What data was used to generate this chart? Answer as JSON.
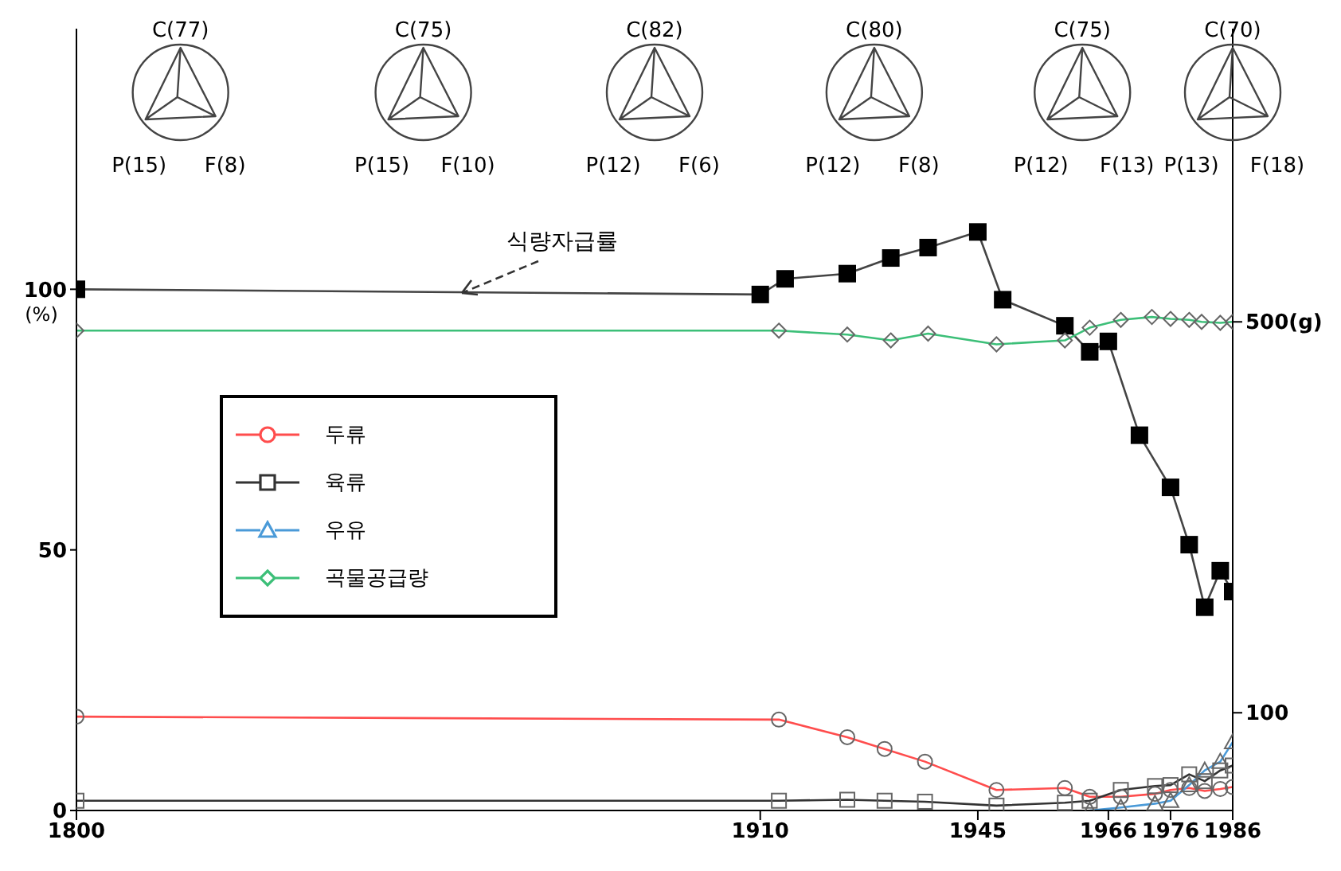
{
  "chart_data": {
    "type": "line",
    "ylabel": "(%)",
    "xlim": [
      1800,
      1986
    ],
    "xticks": [
      1800,
      1910,
      1945,
      1966,
      1976,
      1986
    ],
    "ylim": [
      0,
      150
    ],
    "yticks": [
      0,
      50,
      100
    ],
    "y2lim": [
      0,
      800
    ],
    "y2ticks": [
      100,
      {
        "value": 500,
        "label": "500(g)"
      }
    ],
    "grid": false,
    "legend": "left",
    "annotations": [
      "C(77)",
      "P(15)",
      "F(8)",
      "C(75)",
      "P(15)",
      "F(10)",
      "C(82)",
      "P(12)",
      "F(6)",
      "C(80)",
      "P(12)",
      "F(8)",
      "C(75)",
      "P(12)",
      "F(13)",
      "C(70)",
      "P(13)",
      "F(18)"
    ],
    "series": [
      {
        "name": "식량자급률",
        "color": "#444444",
        "axis": "y",
        "marker": "square",
        "x": [
          1800,
          1910,
          1914,
          1924,
          1931,
          1937,
          1945,
          1949,
          1959,
          1963,
          1966,
          1971,
          1976,
          1979,
          1981.5,
          1984,
          1986
        ],
        "values": [
          100,
          99,
          102,
          103,
          106,
          108,
          111,
          98,
          93,
          88,
          90,
          72,
          62,
          51,
          39,
          46,
          42
        ]
      },
      {
        "name": "두류",
        "color": "#ff4d4d",
        "axis": "y2",
        "marker": "circle",
        "x": [
          1800,
          1913,
          1924,
          1930,
          1936.5,
          1948,
          1959,
          1963,
          1968,
          1973.5,
          1976,
          1979,
          1981.5,
          1984,
          1986
        ],
        "values": [
          96,
          93,
          75,
          63,
          50,
          21,
          23,
          14,
          14,
          17,
          21,
          23,
          20,
          22,
          24
        ]
      },
      {
        "name": "육류",
        "color": "#333333",
        "axis": "y2",
        "marker": "square",
        "x": [
          1800,
          1913,
          1924,
          1930,
          1936.5,
          1948,
          1959,
          1963,
          1968,
          1973.5,
          1976,
          1979,
          1981.5,
          1984,
          1986
        ],
        "values": [
          10,
          10,
          11,
          10,
          9,
          5,
          8,
          10,
          21,
          25,
          26,
          37,
          30,
          41,
          46
        ]
      },
      {
        "name": "우유",
        "color": "#4a9ad8",
        "axis": "y2",
        "marker": "triangle",
        "x": [
          1963,
          1968,
          1973.5,
          1976,
          1979,
          1981.5,
          1984,
          1986
        ],
        "values": [
          0,
          3,
          7,
          10,
          26,
          41,
          50,
          70
        ]
      },
      {
        "name": "곡물공급량",
        "color": "#3cbf78",
        "axis": "y2",
        "marker": "diamond",
        "x": [
          1800,
          1913,
          1924,
          1931,
          1937,
          1948,
          1959,
          1963,
          1968,
          1973,
          1976,
          1979,
          1981,
          1984,
          1986
        ],
        "values": [
          491,
          491,
          487,
          481,
          488,
          477,
          481,
          494,
          502,
          505,
          503,
          502,
          500,
          499,
          500
        ]
      }
    ]
  }
}
